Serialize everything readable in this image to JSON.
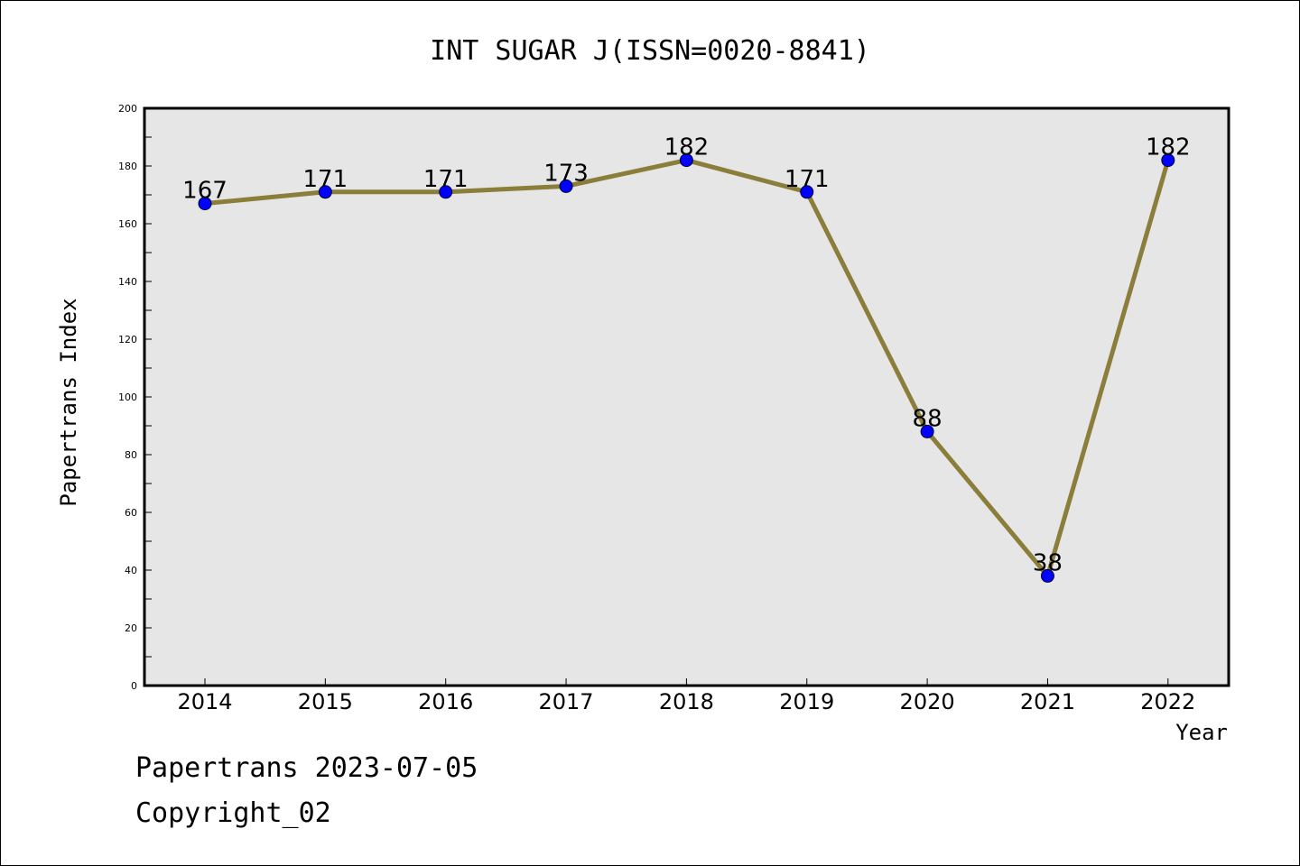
{
  "footer": {
    "line1": "Papertrans 2023-07-05",
    "line2": "Copyright_02"
  },
  "chart_data": {
    "type": "line",
    "title": "INT SUGAR J(ISSN=0020-8841)",
    "xlabel": "Year",
    "ylabel": "Papertrans Index",
    "categories": [
      "2014",
      "2015",
      "2016",
      "2017",
      "2018",
      "2019",
      "2020",
      "2021",
      "2022"
    ],
    "series": [
      {
        "values": [
          167,
          171,
          171,
          173,
          182,
          171,
          88,
          38,
          182
        ]
      }
    ],
    "ylim": [
      0,
      200
    ],
    "yticks": [
      0,
      20,
      40,
      60,
      80,
      100,
      120,
      140,
      160,
      180,
      200
    ],
    "grid": false,
    "data_labels": true,
    "colors": {
      "line": "#8b7d3a",
      "marker": "#0000ff",
      "plot_background": "#e6e6e6"
    }
  }
}
